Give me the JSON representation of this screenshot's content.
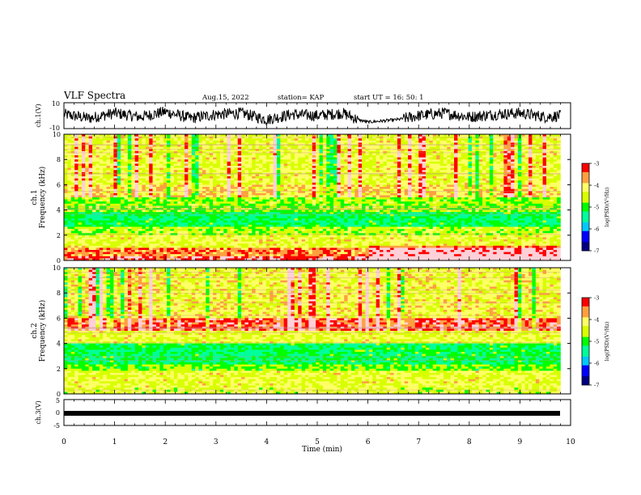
{
  "header": {
    "title": "VLF  Spectra",
    "date": "Aug.15, 2022",
    "station": "station= KAP",
    "start": "start  UT  =    16: 50: 1"
  },
  "colors": {
    "colormap": [
      "#000080",
      "#0000ff",
      "#00c8ff",
      "#00ff9a",
      "#00ff00",
      "#d8ff00",
      "#ffff66",
      "#ffa040",
      "#ff0000",
      "#ffd0d8"
    ],
    "line": "#000000"
  },
  "chart_data": [
    {
      "type": "line",
      "panel": "waveform-ch1",
      "ylabel": "ch.1(V)",
      "ylim": [
        -10,
        10
      ],
      "y_ticks": [
        "10",
        "-10"
      ],
      "x_range_min": [
        0,
        9.8
      ],
      "series": [
        {
          "values_description_free": true,
          "x_min": [
            0.0,
            0.5,
            1.0,
            1.5,
            2.0,
            2.5,
            3.0,
            3.5,
            4.0,
            4.5,
            5.0,
            5.5,
            5.8,
            6.0,
            6.3,
            6.6,
            7.0,
            7.5,
            8.0,
            8.5,
            9.0,
            9.5,
            9.8
          ],
          "y_V": [
            1,
            -2,
            2,
            -1,
            3,
            -2,
            1,
            2,
            -3,
            1,
            0,
            2,
            -3,
            -5,
            -4,
            -3,
            0,
            2,
            -1,
            1,
            2,
            -1,
            0
          ]
        }
      ]
    },
    {
      "type": "heatmap",
      "panel": "spectrogram-ch1",
      "ylabel": "ch.1 Frequency (kHz)",
      "ylim": [
        0,
        10
      ],
      "y_ticks": [
        "0",
        "2",
        "4",
        "6",
        "8",
        "10"
      ],
      "colorbar_label": "log(PSD)(V²/Hz)",
      "colorbar_range": [
        -7,
        -3
      ],
      "colorbar_ticks": [
        "-3",
        "-4",
        "-5",
        "-6",
        "-7"
      ],
      "band_profile_log_psd": [
        {
          "f_khz": [
            0.0,
            0.3
          ],
          "v": -3.1
        },
        {
          "f_khz": [
            0.3,
            1.0
          ],
          "v": -3.6
        },
        {
          "f_khz": [
            1.0,
            2.0
          ],
          "v": -4.3
        },
        {
          "f_khz": [
            2.0,
            2.6
          ],
          "v": -4.6
        },
        {
          "f_khz": [
            2.6,
            3.8
          ],
          "v": -5.2
        },
        {
          "f_khz": [
            3.8,
            5.0
          ],
          "v": -4.7
        },
        {
          "f_khz": [
            5.0,
            6.0
          ],
          "v": -4.0
        },
        {
          "f_khz": [
            6.0,
            10.0
          ],
          "v": -4.3
        }
      ]
    },
    {
      "type": "heatmap",
      "panel": "spectrogram-ch2",
      "ylabel": "ch.2 Frequency (kHz)",
      "ylim": [
        0,
        10
      ],
      "y_ticks": [
        "0",
        "2",
        "4",
        "6",
        "8",
        "10"
      ],
      "colorbar_label": "log(PSD)(V²/Hz)",
      "colorbar_range": [
        -7,
        -3
      ],
      "colorbar_ticks": [
        "-3",
        "-4",
        "-5",
        "-6",
        "-7"
      ],
      "band_profile_log_psd": [
        {
          "f_khz": [
            0.0,
            0.5
          ],
          "v": -4.4
        },
        {
          "f_khz": [
            0.5,
            1.8
          ],
          "v": -4.3
        },
        {
          "f_khz": [
            1.8,
            2.4
          ],
          "v": -4.8
        },
        {
          "f_khz": [
            2.4,
            4.0
          ],
          "v": -5.2
        },
        {
          "f_khz": [
            4.0,
            5.0
          ],
          "v": -4.3
        },
        {
          "f_khz": [
            5.0,
            6.0
          ],
          "v": -3.3
        },
        {
          "f_khz": [
            6.0,
            10.0
          ],
          "v": -4.2
        }
      ]
    },
    {
      "type": "line",
      "panel": "waveform-ch3",
      "ylabel": "ch.3(V)",
      "ylim": [
        -5,
        5
      ],
      "y_ticks": [
        "5",
        "0",
        "-5"
      ],
      "x_range_min": [
        0,
        9.8
      ],
      "series": [
        {
          "x_min": [
            0,
            9.8
          ],
          "y_V": [
            -0.3,
            -0.3
          ]
        }
      ]
    }
  ],
  "x_axis": {
    "label": "Time  (min)",
    "range": [
      0,
      10
    ],
    "ticks": [
      "0",
      "1",
      "2",
      "3",
      "4",
      "5",
      "6",
      "7",
      "8",
      "9",
      "10"
    ]
  }
}
